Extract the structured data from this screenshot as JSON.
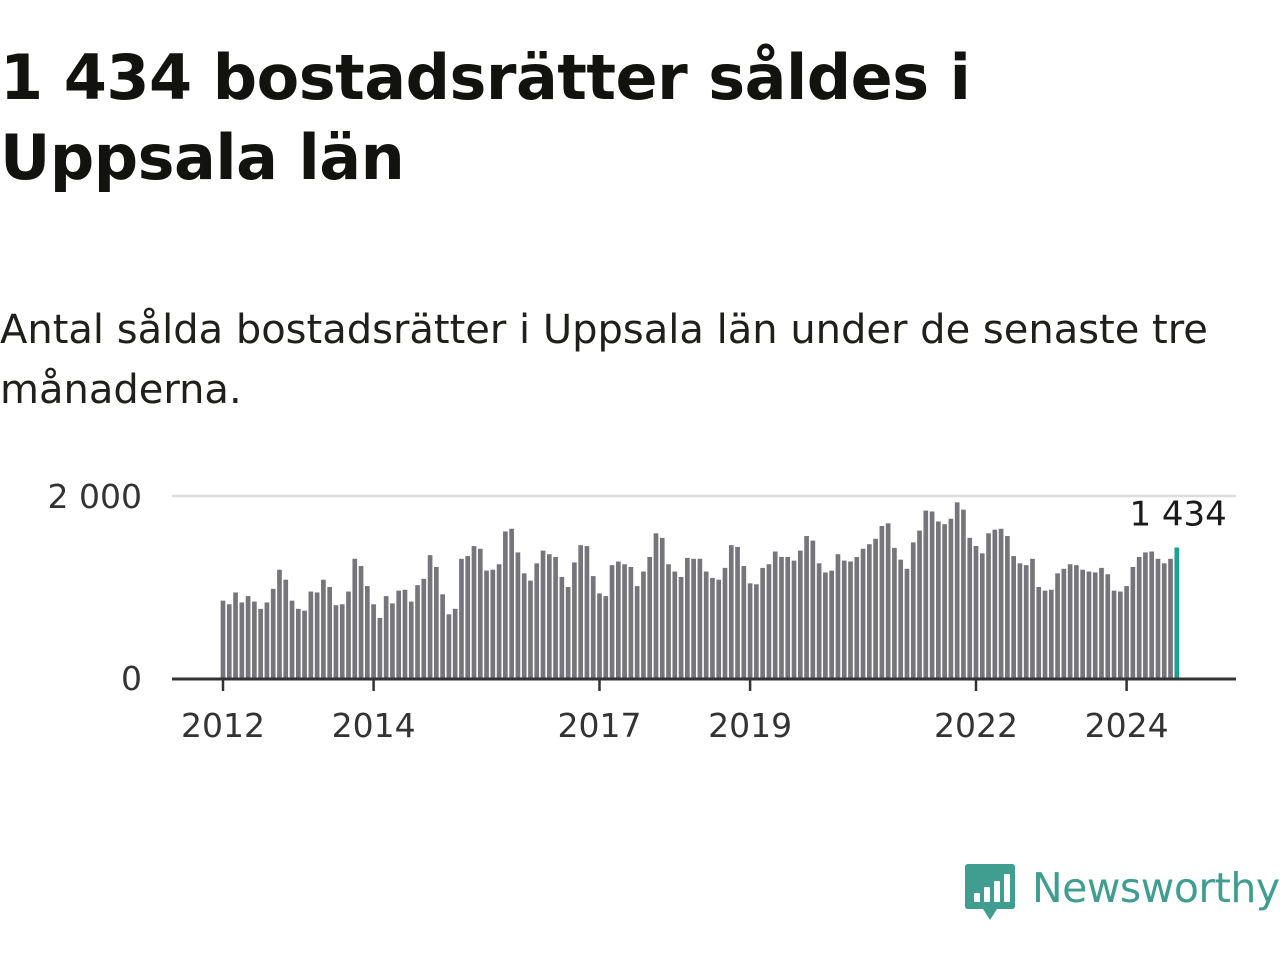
{
  "title": "1 434 bostadsrätter såldes i Uppsala län",
  "subtitle": "Antal sålda bostadsrätter i Uppsala län under de senaste tre månaderna.",
  "logo": {
    "text": "Newsworthy",
    "color": "#3f9e8f"
  },
  "colors": {
    "bar": "#76757c",
    "highlight": "#1aa294",
    "gridline": "#dddddd",
    "axis": "#333333"
  },
  "chart_data": {
    "type": "bar",
    "title": "",
    "xlabel": "",
    "ylabel": "",
    "ylim": [
      0,
      2000
    ],
    "yticks": [
      {
        "value": 0,
        "label": "0"
      },
      {
        "value": 2000,
        "label": "2 000"
      }
    ],
    "xticks": [
      "2012",
      "2014",
      "2017",
      "2019",
      "2022",
      "2024"
    ],
    "grid": true,
    "start": "2012-01",
    "end": "2024-10",
    "highlight_label": "1 434",
    "values": [
      850,
      810,
      940,
      830,
      900,
      840,
      760,
      830,
      980,
      1190,
      1080,
      850,
      760,
      740,
      950,
      940,
      1080,
      1000,
      800,
      810,
      950,
      1310,
      1230,
      1010,
      810,
      660,
      900,
      820,
      960,
      970,
      840,
      1020,
      1090,
      1350,
      1220,
      920,
      700,
      760,
      1310,
      1340,
      1450,
      1420,
      1180,
      1190,
      1250,
      1610,
      1640,
      1380,
      1150,
      1070,
      1260,
      1400,
      1360,
      1330,
      1110,
      1000,
      1270,
      1460,
      1450,
      1120,
      930,
      900,
      1240,
      1280,
      1250,
      1220,
      1010,
      1170,
      1330,
      1590,
      1540,
      1250,
      1170,
      1110,
      1320,
      1310,
      1310,
      1170,
      1100,
      1080,
      1210,
      1460,
      1440,
      1230,
      1040,
      1030,
      1210,
      1250,
      1390,
      1330,
      1330,
      1290,
      1400,
      1560,
      1510,
      1260,
      1160,
      1180,
      1360,
      1290,
      1280,
      1330,
      1420,
      1470,
      1530,
      1670,
      1700,
      1430,
      1300,
      1200,
      1490,
      1620,
      1840,
      1830,
      1720,
      1690,
      1750,
      1930,
      1850,
      1540,
      1450,
      1370,
      1590,
      1630,
      1640,
      1560,
      1340,
      1260,
      1240,
      1310,
      1000,
      960,
      970,
      1150,
      1200,
      1250,
      1240,
      1190,
      1170,
      1160,
      1210,
      1140,
      960,
      950,
      1010,
      1220,
      1330,
      1380,
      1390,
      1310,
      1260,
      1310,
      1434
    ]
  }
}
